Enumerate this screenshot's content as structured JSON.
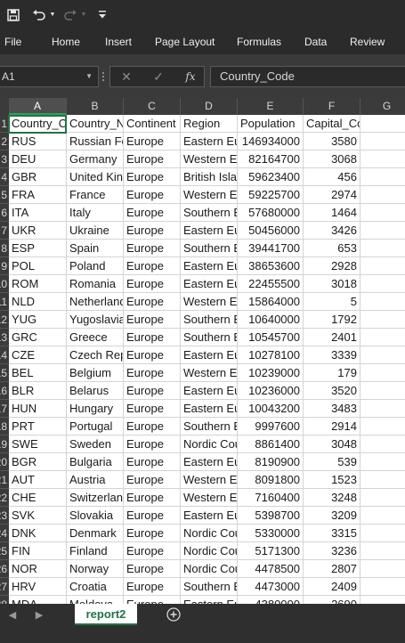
{
  "ribbon": {
    "tabs": [
      "File",
      "Home",
      "Insert",
      "Page Layout",
      "Formulas",
      "Data",
      "Review"
    ]
  },
  "formula_bar": {
    "name_box": "A1",
    "cancel_symbol": "✕",
    "enter_symbol": "✓",
    "fx_label": "fx",
    "content": "Country_Code"
  },
  "grid": {
    "columns": [
      "A",
      "B",
      "C",
      "D",
      "E",
      "F",
      "G"
    ],
    "row_numbers": [
      "1",
      "2",
      "3",
      "4",
      "5",
      "6",
      "7",
      "8",
      "9",
      "10",
      "11",
      "12",
      "13",
      "14",
      "15",
      "16",
      "17",
      "18",
      "19",
      "20",
      "21",
      "22",
      "23",
      "24",
      "25",
      "26",
      "27",
      "28"
    ],
    "header": [
      "Country_Code",
      "Country_Name",
      "Continent",
      "Region",
      "Population",
      "Capital_Code"
    ],
    "rows": [
      [
        "RUS",
        "Russian Federation",
        "Europe",
        "Eastern Europe",
        "146934000",
        "3580"
      ],
      [
        "DEU",
        "Germany",
        "Europe",
        "Western Europe",
        "82164700",
        "3068"
      ],
      [
        "GBR",
        "United Kingdom",
        "Europe",
        "British Islands",
        "59623400",
        "456"
      ],
      [
        "FRA",
        "France",
        "Europe",
        "Western Europe",
        "59225700",
        "2974"
      ],
      [
        "ITA",
        "Italy",
        "Europe",
        "Southern Europe",
        "57680000",
        "1464"
      ],
      [
        "UKR",
        "Ukraine",
        "Europe",
        "Eastern Europe",
        "50456000",
        "3426"
      ],
      [
        "ESP",
        "Spain",
        "Europe",
        "Southern Europe",
        "39441700",
        "653"
      ],
      [
        "POL",
        "Poland",
        "Europe",
        "Eastern Europe",
        "38653600",
        "2928"
      ],
      [
        "ROM",
        "Romania",
        "Europe",
        "Eastern Europe",
        "22455500",
        "3018"
      ],
      [
        "NLD",
        "Netherlands",
        "Europe",
        "Western Europe",
        "15864000",
        "5"
      ],
      [
        "YUG",
        "Yugoslavia",
        "Europe",
        "Southern Europe",
        "10640000",
        "1792"
      ],
      [
        "GRC",
        "Greece",
        "Europe",
        "Southern Europe",
        "10545700",
        "2401"
      ],
      [
        "CZE",
        "Czech Republic",
        "Europe",
        "Eastern Europe",
        "10278100",
        "3339"
      ],
      [
        "BEL",
        "Belgium",
        "Europe",
        "Western Europe",
        "10239000",
        "179"
      ],
      [
        "BLR",
        "Belarus",
        "Europe",
        "Eastern Europe",
        "10236000",
        "3520"
      ],
      [
        "HUN",
        "Hungary",
        "Europe",
        "Eastern Europe",
        "10043200",
        "3483"
      ],
      [
        "PRT",
        "Portugal",
        "Europe",
        "Southern Europe",
        "9997600",
        "2914"
      ],
      [
        "SWE",
        "Sweden",
        "Europe",
        "Nordic Countries",
        "8861400",
        "3048"
      ],
      [
        "BGR",
        "Bulgaria",
        "Europe",
        "Eastern Europe",
        "8190900",
        "539"
      ],
      [
        "AUT",
        "Austria",
        "Europe",
        "Western Europe",
        "8091800",
        "1523"
      ],
      [
        "CHE",
        "Switzerland",
        "Europe",
        "Western Europe",
        "7160400",
        "3248"
      ],
      [
        "SVK",
        "Slovakia",
        "Europe",
        "Eastern Europe",
        "5398700",
        "3209"
      ],
      [
        "DNK",
        "Denmark",
        "Europe",
        "Nordic Countries",
        "5330000",
        "3315"
      ],
      [
        "FIN",
        "Finland",
        "Europe",
        "Nordic Countries",
        "5171300",
        "3236"
      ],
      [
        "NOR",
        "Norway",
        "Europe",
        "Nordic Countries",
        "4478500",
        "2807"
      ],
      [
        "HRV",
        "Croatia",
        "Europe",
        "Southern Europe",
        "4473000",
        "2409"
      ],
      [
        "MDA",
        "Moldova",
        "Europe",
        "Eastern Europe",
        "4380000",
        "2690"
      ]
    ]
  },
  "sheets": {
    "active": "report2"
  }
}
